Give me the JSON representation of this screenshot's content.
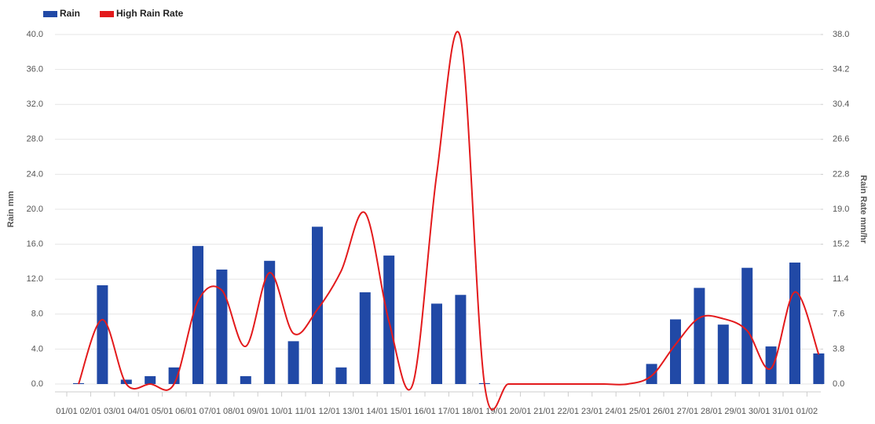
{
  "chart_data": {
    "type": "bar-line",
    "categories": [
      "01/01",
      "02/01",
      "03/01",
      "04/01",
      "05/01",
      "06/01",
      "07/01",
      "08/01",
      "09/01",
      "10/01",
      "11/01",
      "12/01",
      "13/01",
      "14/01",
      "15/01",
      "16/01",
      "17/01",
      "18/01",
      "19/01",
      "20/01",
      "21/01",
      "22/01",
      "23/01",
      "24/01",
      "25/01",
      "26/01",
      "27/01",
      "28/01",
      "29/01",
      "30/01",
      "31/01",
      "01/02"
    ],
    "series": [
      {
        "name": "Rain",
        "color": "#2149a6",
        "type": "bar",
        "values": [
          0.1,
          11.3,
          0.5,
          0.9,
          1.9,
          15.8,
          13.1,
          0.9,
          14.1,
          4.9,
          18.0,
          1.9,
          10.5,
          14.7,
          0,
          9.2,
          10.2,
          0.1,
          0,
          0,
          0,
          0,
          0,
          0,
          2.3,
          7.4,
          11.0,
          6.8,
          13.3,
          4.3,
          13.9,
          3.5
        ]
      },
      {
        "name": "High Rain Rate",
        "color": "#e31a1c",
        "type": "line",
        "axis": "y2",
        "values": [
          0,
          7.0,
          0,
          0,
          0,
          9.0,
          10.2,
          4.1,
          12.1,
          5.5,
          8.1,
          12.3,
          18.6,
          6.8,
          0,
          22.8,
          37.6,
          0,
          0,
          0,
          0,
          0,
          0,
          0,
          0.9,
          4.3,
          7.2,
          7.1,
          5.8,
          1.7,
          10.0,
          3.2
        ]
      }
    ],
    "y_label": "Rain mm",
    "y2_label": "Rain Rate mm/hr",
    "ylim": [
      0,
      40
    ],
    "yticks": [
      {
        "value": 0,
        "label": "0.0"
      },
      {
        "value": 4,
        "label": "4.0"
      },
      {
        "value": 8,
        "label": "8.0"
      },
      {
        "value": 12,
        "label": "12.0"
      },
      {
        "value": 16,
        "label": "16.0"
      },
      {
        "value": 20,
        "label": "20.0"
      },
      {
        "value": 24,
        "label": "24.0"
      },
      {
        "value": 28,
        "label": "28.0"
      },
      {
        "value": 32,
        "label": "32.0"
      },
      {
        "value": 36,
        "label": "36.0"
      },
      {
        "value": 40,
        "label": "40.0"
      }
    ],
    "y2lim": [
      0,
      38
    ],
    "y2ticks": [
      {
        "value": 0,
        "label": "0.0"
      },
      {
        "value": 3.8,
        "label": "3.8"
      },
      {
        "value": 7.6,
        "label": "7.6"
      },
      {
        "value": 11.4,
        "label": "11.4"
      },
      {
        "value": 15.2,
        "label": "15.2"
      },
      {
        "value": 19,
        "label": "19.0"
      },
      {
        "value": 22.8,
        "label": "22.8"
      },
      {
        "value": 26.6,
        "label": "26.6"
      },
      {
        "value": 30.4,
        "label": "30.4"
      },
      {
        "value": 34.2,
        "label": "34.2"
      },
      {
        "value": 38,
        "label": "38.0"
      }
    ],
    "grid": true,
    "legend": "top-left"
  }
}
